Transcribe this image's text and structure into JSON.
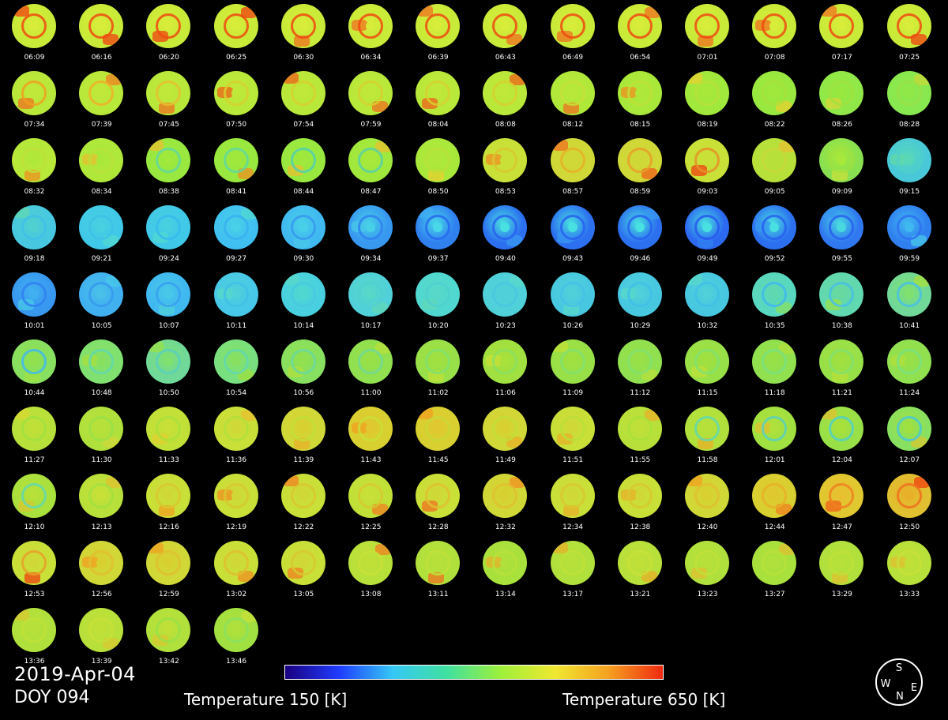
{
  "date_label": "2019-Apr-04",
  "doy_label": "DOY 094",
  "colorbar": {
    "min_label": "Temperature 150 [K]",
    "max_label": "Temperature 650 [K]",
    "min_value": 150,
    "max_value": 650,
    "unit": "K",
    "colormap": [
      "#1a0080",
      "#1f3cff",
      "#35c8f5",
      "#40e0a0",
      "#9ef03a",
      "#f0e830",
      "#f5a020",
      "#f02a10"
    ]
  },
  "compass": {
    "top": "S",
    "left": "W",
    "right": "E",
    "bottom": "N"
  },
  "frames": [
    {
      "time": "06:09",
      "base": "#c8ea38",
      "ring": "#ee4a10",
      "core": "#d8ec3a",
      "hot": "#f04010"
    },
    {
      "time": "06:16",
      "base": "#c8ea38",
      "ring": "#ee4a10",
      "core": "#d8ec3a",
      "hot": "#f04010"
    },
    {
      "time": "06:20",
      "base": "#c8ea38",
      "ring": "#ee4a10",
      "core": "#d8ec3a",
      "hot": "#f04010"
    },
    {
      "time": "06:25",
      "base": "#c8ea38",
      "ring": "#ee4a10",
      "core": "#d8ec3a",
      "hot": "#f04010"
    },
    {
      "time": "06:30",
      "base": "#c8ea38",
      "ring": "#ee4a10",
      "core": "#d8ec3a",
      "hot": "#f07020"
    },
    {
      "time": "06:34",
      "base": "#c8ea38",
      "ring": "#ee4a10",
      "core": "#d8ec3a",
      "hot": "#f07020"
    },
    {
      "time": "06:39",
      "base": "#c8ea38",
      "ring": "#ee4a10",
      "core": "#d8ec3a",
      "hot": "#f07020"
    },
    {
      "time": "06:43",
      "base": "#c8ea38",
      "ring": "#ee4a10",
      "core": "#d8ec3a",
      "hot": "#f07020"
    },
    {
      "time": "06:49",
      "base": "#c8ea38",
      "ring": "#ee4a10",
      "core": "#d8ec3a",
      "hot": "#f07020"
    },
    {
      "time": "06:54",
      "base": "#c8ea38",
      "ring": "#ee4a10",
      "core": "#d8ec3a",
      "hot": "#f07020"
    },
    {
      "time": "07:01",
      "base": "#c8ea38",
      "ring": "#ee4a10",
      "core": "#d8ec3a",
      "hot": "#f07020"
    },
    {
      "time": "07:08",
      "base": "#c8ea38",
      "ring": "#ee4a10",
      "core": "#d8ec3a",
      "hot": "#f07020"
    },
    {
      "time": "07:17",
      "base": "#c8ea38",
      "ring": "#ee4a10",
      "core": "#d8ec3a",
      "hot": "#f07020"
    },
    {
      "time": "07:25",
      "base": "#c8ea38",
      "ring": "#ee4a10",
      "core": "#d8ec3a",
      "hot": "#f04010"
    },
    {
      "time": "07:34",
      "base": "#b8e83a",
      "ring": "#f0a020",
      "core": "#c0e83a",
      "hot": "#f07020"
    },
    {
      "time": "07:39",
      "base": "#b8e83a",
      "ring": "#f0b028",
      "core": "#c0e83a",
      "hot": "#f08020"
    },
    {
      "time": "07:45",
      "base": "#b8e83a",
      "ring": "#e8c030",
      "core": "#c0e83a",
      "hot": "#f07020"
    },
    {
      "time": "07:50",
      "base": "#b8e83a",
      "ring": "#d8d030",
      "core": "#c0e83a",
      "hot": "#f06018"
    },
    {
      "time": "07:54",
      "base": "#b8e83a",
      "ring": "#d8d030",
      "core": "#c0e83a",
      "hot": "#f06018"
    },
    {
      "time": "07:59",
      "base": "#b8e83a",
      "ring": "#d8d030",
      "core": "#c0e83a",
      "hot": "#f07020"
    },
    {
      "time": "08:04",
      "base": "#b8e83a",
      "ring": "#d8d030",
      "core": "#c0e83a",
      "hot": "#f06018"
    },
    {
      "time": "08:08",
      "base": "#b8e83a",
      "ring": "#d8d030",
      "core": "#c0e83a",
      "hot": "#f06018"
    },
    {
      "time": "08:12",
      "base": "#b0e83a",
      "ring": "#c8e038",
      "core": "#b8e83a",
      "hot": "#f07020"
    },
    {
      "time": "08:15",
      "base": "#a8e83a",
      "ring": "#c0e038",
      "core": "#b0e83a",
      "hot": "#f09020"
    },
    {
      "time": "08:19",
      "base": "#a0e83c",
      "ring": "#b8e03a",
      "core": "#a8e83a",
      "hot": "#e8d030"
    },
    {
      "time": "08:22",
      "base": "#98e840",
      "ring": "#a8e03c",
      "core": "#a0e83c",
      "hot": "#e8d030"
    },
    {
      "time": "08:26",
      "base": "#90e848",
      "ring": "#a0e040",
      "core": "#98e840",
      "hot": "#d8d838"
    },
    {
      "time": "08:28",
      "base": "#88e850",
      "ring": "#98e048",
      "core": "#90e848",
      "hot": "#c8d838"
    },
    {
      "time": "08:32",
      "base": "#b8e83a",
      "ring": "#c0e038",
      "core": "#b0e83a",
      "hot": "#f09020"
    },
    {
      "time": "08:34",
      "base": "#b0e83a",
      "ring": "#b8e03a",
      "core": "#a8e83a",
      "hot": "#e8c030"
    },
    {
      "time": "08:38",
      "base": "#98e840",
      "ring": "#60d8a0",
      "core": "#a0e83c",
      "hot": "#e8c030"
    },
    {
      "time": "08:41",
      "base": "#98e840",
      "ring": "#60d8a0",
      "core": "#a0e83c",
      "hot": "#f09020"
    },
    {
      "time": "08:44",
      "base": "#98e840",
      "ring": "#50d0b0",
      "core": "#a0e83c",
      "hot": "#e8c030"
    },
    {
      "time": "08:47",
      "base": "#a0e83c",
      "ring": "#58d0a8",
      "core": "#a8e83a",
      "hot": "#e8c030"
    },
    {
      "time": "08:50",
      "base": "#a8e83a",
      "ring": "#b8e03a",
      "core": "#b0e83a",
      "hot": "#e8d030"
    },
    {
      "time": "08:53",
      "base": "#c8e038",
      "ring": "#d8c830",
      "core": "#c8e038",
      "hot": "#f09020"
    },
    {
      "time": "08:57",
      "base": "#d0d838",
      "ring": "#e8b028",
      "core": "#d0d838",
      "hot": "#f07020"
    },
    {
      "time": "08:59",
      "base": "#d0d838",
      "ring": "#e8a028",
      "core": "#d0d838",
      "hot": "#f06018"
    },
    {
      "time": "09:03",
      "base": "#c8e038",
      "ring": "#e89028",
      "core": "#c8e038",
      "hot": "#f04010"
    },
    {
      "time": "09:05",
      "base": "#b8e03a",
      "ring": "#c8d838",
      "core": "#b8e03a",
      "hot": "#e8c030"
    },
    {
      "time": "09:09",
      "base": "#88e050",
      "ring": "#a0e040",
      "core": "#a8e83a",
      "hot": "#c8e038"
    },
    {
      "time": "09:15",
      "base": "#48c8d8",
      "ring": "#50d0c8",
      "core": "#58d8b8",
      "hot": "#60d8a8"
    },
    {
      "time": "09:18",
      "base": "#48c8e0",
      "ring": "#40c0e8",
      "core": "#50d0d0",
      "hot": "#60d8b0"
    },
    {
      "time": "09:21",
      "base": "#40c8e8",
      "ring": "#40c0e8",
      "core": "#48d0e0",
      "hot": "#50d8d0"
    },
    {
      "time": "09:24",
      "base": "#40c8e8",
      "ring": "#38b8f0",
      "core": "#48d0e0",
      "hot": "#50d8d0"
    },
    {
      "time": "09:27",
      "base": "#40c0f0",
      "ring": "#38b0f0",
      "core": "#48d0e8",
      "hot": "#50d8d0"
    },
    {
      "time": "09:30",
      "base": "#40b8f0",
      "ring": "#3898f0",
      "core": "#48d0e8",
      "hot": "#48c8e8"
    },
    {
      "time": "09:34",
      "base": "#3898f0",
      "ring": "#3080f0",
      "core": "#48d0e8",
      "hot": "#48c8e8"
    },
    {
      "time": "09:37",
      "base": "#3080f0",
      "ring": "#2868f0",
      "core": "#48d8e8",
      "hot": "#40b0f0"
    },
    {
      "time": "09:40",
      "base": "#2c70f0",
      "ring": "#2860f0",
      "core": "#48e0e0",
      "hot": "#3898f0"
    },
    {
      "time": "09:43",
      "base": "#2c70f0",
      "ring": "#2860f0",
      "core": "#48e0e0",
      "hot": "#3898f0"
    },
    {
      "time": "09:46",
      "base": "#2c70f0",
      "ring": "#2860f0",
      "core": "#48e0e0",
      "hot": "#3898f0"
    },
    {
      "time": "09:49",
      "base": "#2c68f0",
      "ring": "#2858f0",
      "core": "#48e0e0",
      "hot": "#3080f0"
    },
    {
      "time": "09:52",
      "base": "#2c70f0",
      "ring": "#2860f0",
      "core": "#48e0e0",
      "hot": "#3898f0"
    },
    {
      "time": "09:55",
      "base": "#3078f0",
      "ring": "#2860f0",
      "core": "#48d8e0",
      "hot": "#3898f0"
    },
    {
      "time": "09:59",
      "base": "#3080f0",
      "ring": "#3070f0",
      "core": "#40b8f0",
      "hot": "#48c8e8"
    },
    {
      "time": "10:01",
      "base": "#3898f0",
      "ring": "#3080f0",
      "core": "#40b0f0",
      "hot": "#48c8e8"
    },
    {
      "time": "10:05",
      "base": "#40b0f0",
      "ring": "#3898f0",
      "core": "#48c0e8",
      "hot": "#48c8e8"
    },
    {
      "time": "10:07",
      "base": "#40b8f0",
      "ring": "#38a0f0",
      "core": "#48c8e8",
      "hot": "#50d0d8"
    },
    {
      "time": "10:11",
      "base": "#48c8e8",
      "ring": "#40c0e8",
      "core": "#50d0d8",
      "hot": "#58d8c8"
    },
    {
      "time": "10:14",
      "base": "#48d0e0",
      "ring": "#48c8e0",
      "core": "#50d8d0",
      "hot": "#58d8c8"
    },
    {
      "time": "10:17",
      "base": "#50d0d8",
      "ring": "#50d0d0",
      "core": "#58d8c8",
      "hot": "#60d8b8"
    },
    {
      "time": "10:20",
      "base": "#50d8d0",
      "ring": "#50d0d0",
      "core": "#58d8c8",
      "hot": "#60d8b8"
    },
    {
      "time": "10:23",
      "base": "#50d0d8",
      "ring": "#48c8e0",
      "core": "#50d0d8",
      "hot": "#58d8c8"
    },
    {
      "time": "10:26",
      "base": "#48c8e0",
      "ring": "#48c0e8",
      "core": "#50d0d8",
      "hot": "#58d8c8"
    },
    {
      "time": "10:29",
      "base": "#48c8e0",
      "ring": "#40c0e8",
      "core": "#50d0d8",
      "hot": "#58d8c8"
    },
    {
      "time": "10:32",
      "base": "#48c8e0",
      "ring": "#40c0e8",
      "core": "#50d0d8",
      "hot": "#58d8c8"
    },
    {
      "time": "10:35",
      "base": "#58d8c0",
      "ring": "#40b8f0",
      "core": "#60d8b0",
      "hot": "#88e060"
    },
    {
      "time": "10:38",
      "base": "#60d8b0",
      "ring": "#48c0e8",
      "core": "#68d8a0",
      "hot": "#98e048"
    },
    {
      "time": "10:41",
      "base": "#70d898",
      "ring": "#48c0e8",
      "core": "#80e070",
      "hot": "#a8e03c"
    },
    {
      "time": "10:44",
      "base": "#88e060",
      "ring": "#40b8f0",
      "core": "#90e050",
      "hot": "#a0e040"
    },
    {
      "time": "10:48",
      "base": "#80e070",
      "ring": "#60d8b0",
      "core": "#88e060",
      "hot": "#a8e03c"
    },
    {
      "time": "10:50",
      "base": "#70d898",
      "ring": "#58d0c0",
      "core": "#80e070",
      "hot": "#98e048"
    },
    {
      "time": "10:54",
      "base": "#78e080",
      "ring": "#60d8b0",
      "core": "#88e060",
      "hot": "#a0e040"
    },
    {
      "time": "10:56",
      "base": "#88e060",
      "ring": "#68d8a0",
      "core": "#90e050",
      "hot": "#b0e03c"
    },
    {
      "time": "11:00",
      "base": "#90e050",
      "ring": "#70d898",
      "core": "#98e048",
      "hot": "#b8e03a"
    },
    {
      "time": "11:02",
      "base": "#98e048",
      "ring": "#80e070",
      "core": "#a0e040",
      "hot": "#c0e038"
    },
    {
      "time": "11:06",
      "base": "#a0e040",
      "ring": "#88e060",
      "core": "#a8e03c",
      "hot": "#c8e038"
    },
    {
      "time": "11:09",
      "base": "#98e048",
      "ring": "#80e070",
      "core": "#a0e040",
      "hot": "#c0e038"
    },
    {
      "time": "11:12",
      "base": "#90e050",
      "ring": "#80e070",
      "core": "#98e048",
      "hot": "#b8e03a"
    },
    {
      "time": "11:15",
      "base": "#98e048",
      "ring": "#80e070",
      "core": "#a0e040",
      "hot": "#c0e038"
    },
    {
      "time": "11:18",
      "base": "#90e050",
      "ring": "#78e080",
      "core": "#98e048",
      "hot": "#b0e03c"
    },
    {
      "time": "11:21",
      "base": "#98e048",
      "ring": "#80e070",
      "core": "#a0e040",
      "hot": "#b8e03a"
    },
    {
      "time": "11:24",
      "base": "#90e050",
      "ring": "#78e080",
      "core": "#98e048",
      "hot": "#b0e03c"
    },
    {
      "time": "11:27",
      "base": "#b8e03a",
      "ring": "#a0e040",
      "core": "#c0e038",
      "hot": "#d8d830"
    },
    {
      "time": "11:30",
      "base": "#b0e03c",
      "ring": "#98e048",
      "core": "#b8e03a",
      "hot": "#d0d838"
    },
    {
      "time": "11:33",
      "base": "#c0e038",
      "ring": "#a8e03c",
      "core": "#c8e038",
      "hot": "#e0d030"
    },
    {
      "time": "11:36",
      "base": "#c8e038",
      "ring": "#b0e03c",
      "core": "#d0d838",
      "hot": "#e8c030"
    },
    {
      "time": "11:39",
      "base": "#d0d838",
      "ring": "#c0e038",
      "core": "#d8d030",
      "hot": "#e8b028"
    },
    {
      "time": "11:43",
      "base": "#d8d030",
      "ring": "#c8e038",
      "core": "#e0c830",
      "hot": "#f0a020"
    },
    {
      "time": "11:45",
      "base": "#d8d030",
      "ring": "#c8d838",
      "core": "#e0c830",
      "hot": "#f0a020"
    },
    {
      "time": "11:49",
      "base": "#d0d838",
      "ring": "#c0e038",
      "core": "#d8d030",
      "hot": "#e8b028"
    },
    {
      "time": "11:51",
      "base": "#c8e038",
      "ring": "#b8e03a",
      "core": "#d0d838",
      "hot": "#e8b028"
    },
    {
      "time": "11:55",
      "base": "#b8e03a",
      "ring": "#a8e03c",
      "core": "#c0e038",
      "hot": "#e8b028"
    },
    {
      "time": "11:58",
      "base": "#b0e03c",
      "ring": "#60d8b0",
      "core": "#b8e03a",
      "hot": "#e8b028"
    },
    {
      "time": "12:01",
      "base": "#a0e040",
      "ring": "#58d0c0",
      "core": "#b0e03c",
      "hot": "#e0c030"
    },
    {
      "time": "12:04",
      "base": "#98e048",
      "ring": "#50d0c8",
      "core": "#a8e03c",
      "hot": "#e0c030"
    },
    {
      "time": "12:07",
      "base": "#88e060",
      "ring": "#48c8d8",
      "core": "#a0e040",
      "hot": "#d8c830"
    },
    {
      "time": "12:10",
      "base": "#a8e03c",
      "ring": "#60d8b0",
      "core": "#b8e03a",
      "hot": "#d8c830"
    },
    {
      "time": "12:13",
      "base": "#b8e03a",
      "ring": "#a0e040",
      "core": "#c8e038",
      "hot": "#e0c030"
    },
    {
      "time": "12:16",
      "base": "#c8e038",
      "ring": "#d8c830",
      "core": "#d0d838",
      "hot": "#f0a020"
    },
    {
      "time": "12:19",
      "base": "#c8e038",
      "ring": "#d8c830",
      "core": "#d0d838",
      "hot": "#f09020"
    },
    {
      "time": "12:22",
      "base": "#c8e038",
      "ring": "#d8c830",
      "core": "#d0d838",
      "hot": "#f08020"
    },
    {
      "time": "12:25",
      "base": "#c0e038",
      "ring": "#d8c830",
      "core": "#c8e038",
      "hot": "#f08020"
    },
    {
      "time": "12:28",
      "base": "#c8e038",
      "ring": "#e0c030",
      "core": "#d0d838",
      "hot": "#f07020"
    },
    {
      "time": "12:32",
      "base": "#d0d838",
      "ring": "#e0c030",
      "core": "#d8d030",
      "hot": "#f09020"
    },
    {
      "time": "12:34",
      "base": "#c8e038",
      "ring": "#d8c830",
      "core": "#d0d838",
      "hot": "#e8b028"
    },
    {
      "time": "12:38",
      "base": "#c8e038",
      "ring": "#d8c830",
      "core": "#d0d838",
      "hot": "#e8b028"
    },
    {
      "time": "12:40",
      "base": "#d0d838",
      "ring": "#e0c030",
      "core": "#d8d030",
      "hot": "#f0a020"
    },
    {
      "time": "12:44",
      "base": "#d8d030",
      "ring": "#e8b028",
      "core": "#e0c830",
      "hot": "#f08020"
    },
    {
      "time": "12:47",
      "base": "#e0c830",
      "ring": "#f08020",
      "core": "#e8c030",
      "hot": "#f06018"
    },
    {
      "time": "12:50",
      "base": "#e0c030",
      "ring": "#f07020",
      "core": "#e8b028",
      "hot": "#f04010"
    },
    {
      "time": "12:53",
      "base": "#c8e038",
      "ring": "#e8a028",
      "core": "#d0d838",
      "hot": "#f04010"
    },
    {
      "time": "12:56",
      "base": "#d0d838",
      "ring": "#e0c030",
      "core": "#d8d030",
      "hot": "#f0a020"
    },
    {
      "time": "12:59",
      "base": "#d0d838",
      "ring": "#e0c030",
      "core": "#d8d030",
      "hot": "#f0a020"
    },
    {
      "time": "13:02",
      "base": "#c8e038",
      "ring": "#e0c030",
      "core": "#d0d838",
      "hot": "#f09020"
    },
    {
      "time": "13:05",
      "base": "#c8e038",
      "ring": "#d8c830",
      "core": "#d0d838",
      "hot": "#f08020"
    },
    {
      "time": "13:08",
      "base": "#b8e03a",
      "ring": "#c8e038",
      "core": "#c0e038",
      "hot": "#f08020"
    },
    {
      "time": "13:11",
      "base": "#b0e03c",
      "ring": "#c0e038",
      "core": "#b8e03a",
      "hot": "#f07020"
    },
    {
      "time": "13:14",
      "base": "#a8e03c",
      "ring": "#b8e03a",
      "core": "#b0e03c",
      "hot": "#e8b028"
    },
    {
      "time": "13:17",
      "base": "#b0e03c",
      "ring": "#c0e038",
      "core": "#b8e03a",
      "hot": "#e8b028"
    },
    {
      "time": "13:21",
      "base": "#b8e03a",
      "ring": "#c8e038",
      "core": "#c0e038",
      "hot": "#e8b028"
    },
    {
      "time": "13:23",
      "base": "#b0e03c",
      "ring": "#c0e038",
      "core": "#b8e03a",
      "hot": "#e0c030"
    },
    {
      "time": "13:27",
      "base": "#a8e03c",
      "ring": "#b8e03a",
      "core": "#b0e03c",
      "hot": "#e0c030"
    },
    {
      "time": "13:29",
      "base": "#b0e03c",
      "ring": "#c0e038",
      "core": "#b8e03a",
      "hot": "#e0c030"
    },
    {
      "time": "13:33",
      "base": "#b8e03a",
      "ring": "#c8e038",
      "core": "#c0e038",
      "hot": "#e0c030"
    },
    {
      "time": "13:36",
      "base": "#b0e03c",
      "ring": "#c0e038",
      "core": "#b8e03a",
      "hot": "#d8c830"
    },
    {
      "time": "13:39",
      "base": "#b8e03a",
      "ring": "#c8e038",
      "core": "#c0e038",
      "hot": "#d8c830"
    },
    {
      "time": "13:42",
      "base": "#b0e03c",
      "ring": "#98e048",
      "core": "#c0e038",
      "hot": "#d8c830"
    },
    {
      "time": "13:46",
      "base": "#a0e040",
      "ring": "#88e060",
      "core": "#b0e03c",
      "hot": "#c8e038"
    }
  ]
}
